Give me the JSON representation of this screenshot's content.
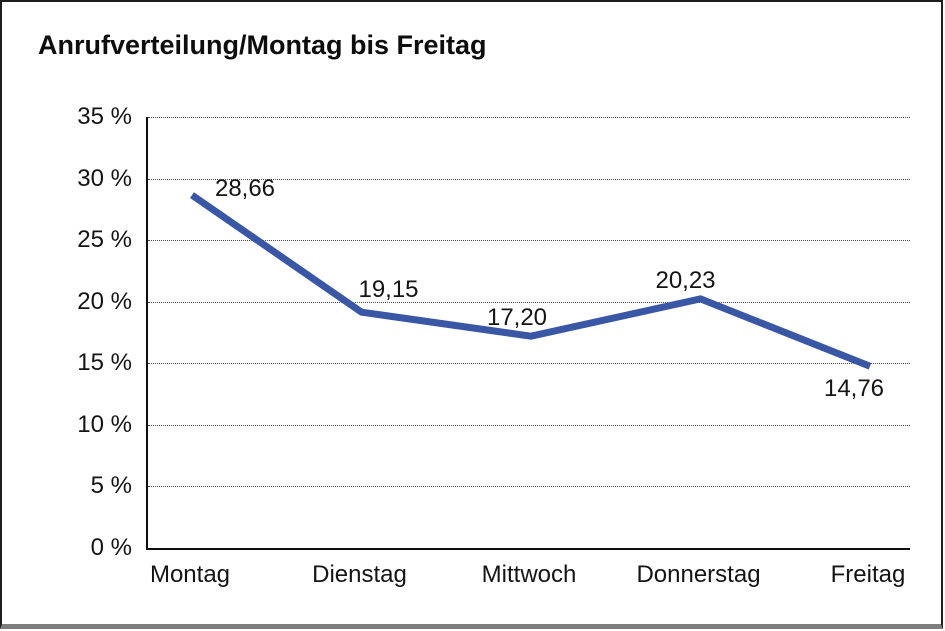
{
  "title": "Anrufverteilung/Montag bis Freitag",
  "chart_data": {
    "type": "line",
    "title": "Anrufverteilung/Montag bis Freitag",
    "categories": [
      "Montag",
      "Dienstag",
      "Mittwoch",
      "Donnerstag",
      "Freitag"
    ],
    "series": [
      {
        "name": "Anrufverteilung",
        "values": [
          28.66,
          19.15,
          17.2,
          20.23,
          14.76
        ]
      }
    ],
    "value_labels": [
      "28,66",
      "19,15",
      "17,20",
      "20,23",
      "14,76"
    ],
    "ylabel": "",
    "xlabel": "",
    "ylim": [
      0,
      35
    ],
    "ytick_step": 5,
    "ytick_labels": [
      "0 %",
      "5 %",
      "10 %",
      "15 %",
      "20 %",
      "25 %",
      "30 %",
      "35 %"
    ],
    "grid": "horizontal dotted gridlines at each 5% step",
    "legend_position": "none",
    "line_color": "#3A57A5",
    "text_color": "#141414"
  }
}
